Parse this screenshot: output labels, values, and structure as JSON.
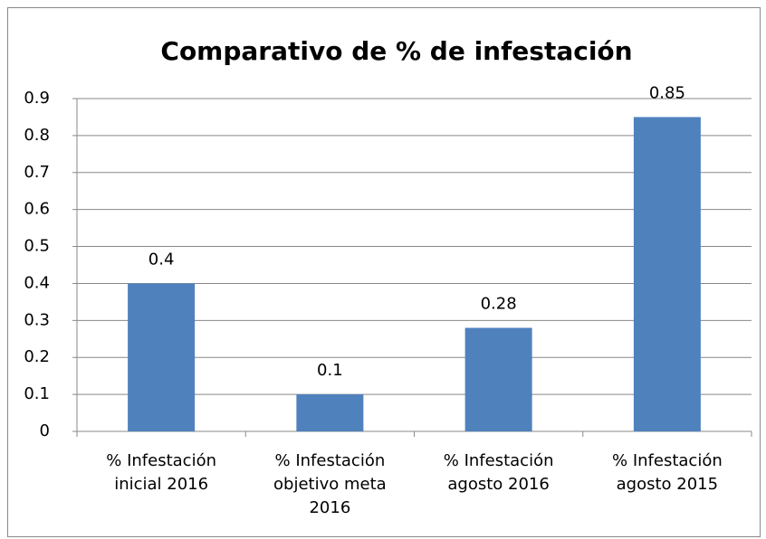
{
  "chart_data": {
    "type": "bar",
    "title": "Comparativo de % de infestación",
    "categories": [
      "% Infestación inicial 2016",
      "% Infestación objetivo meta 2016",
      "% Infestación agosto 2016",
      "% Infestación agosto 2015"
    ],
    "values": [
      0.4,
      0.1,
      0.28,
      0.85
    ],
    "color": "#4f81bd",
    "ylim": [
      0,
      0.9
    ],
    "yticks": [
      0,
      0.1,
      0.2,
      0.3,
      0.4,
      0.5,
      0.6,
      0.7,
      0.8,
      0.9
    ],
    "grid": true
  }
}
